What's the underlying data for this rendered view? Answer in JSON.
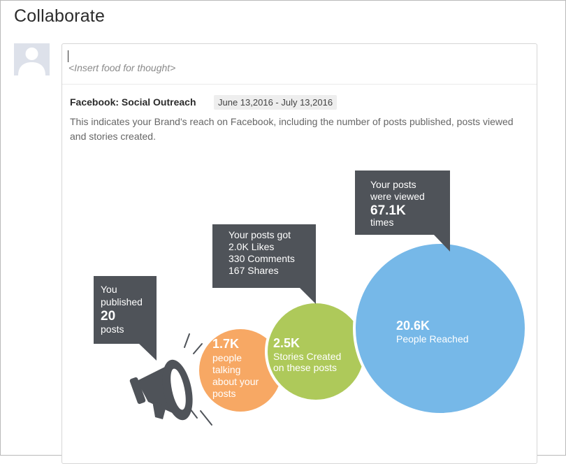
{
  "page": {
    "title": "Collaborate"
  },
  "composer": {
    "placeholder": "<Insert food for thought>"
  },
  "card": {
    "title": "Facebook: Social Outreach",
    "date_range": "June 13,2016 - July 13,2016",
    "description": "This indicates your Brand's reach on Facebook, including the number of posts published, posts viewed and stories created."
  },
  "infographic": {
    "colors": {
      "callout": "#4f5359",
      "orange": "#f7a864",
      "green": "#aec95a",
      "blue": "#76b8e8",
      "megaphone": "#4f5359"
    },
    "published": {
      "line1": "You",
      "line2": "published",
      "value": "20",
      "line3": "posts"
    },
    "engagement": {
      "line1": "Your posts got",
      "line2": "2.0K Likes",
      "line3": "330 Comments",
      "line4": "167 Shares"
    },
    "views": {
      "line1": "Your posts",
      "line2": "were viewed",
      "value": "67.1K",
      "line3": "times"
    },
    "talking": {
      "value": "1.7K",
      "line1": "people",
      "line2": "talking",
      "line3": "about your",
      "line4": "posts"
    },
    "stories": {
      "value": "2.5K",
      "line1": "Stories Created",
      "line2": "on these posts"
    },
    "reached": {
      "value": "20.6K",
      "line1": "People Reached"
    }
  }
}
